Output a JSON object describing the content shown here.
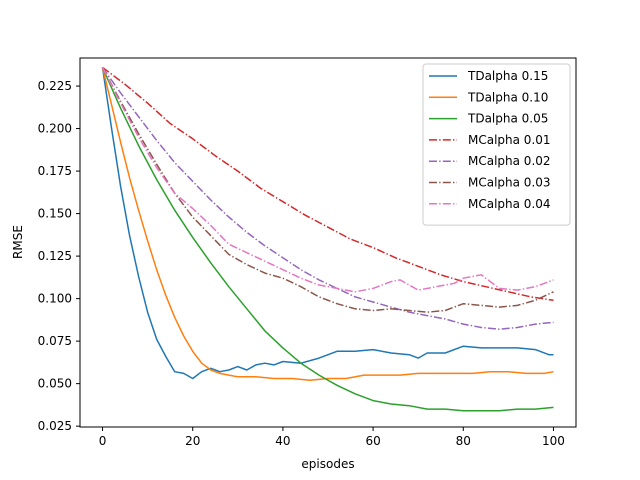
{
  "chart_data": {
    "type": "line",
    "title": "",
    "xlabel": "episodes",
    "ylabel": "RMSE",
    "xlim": [
      -5,
      105
    ],
    "ylim": [
      0.0245,
      0.2415
    ],
    "xticks": [
      0,
      20,
      40,
      60,
      80,
      100
    ],
    "yticks": [
      0.025,
      0.05,
      0.075,
      0.1,
      0.125,
      0.15,
      0.175,
      0.2,
      0.225
    ],
    "ytick_labels": [
      "0.025",
      "0.050",
      "0.075",
      "0.100",
      "0.125",
      "0.150",
      "0.175",
      "0.200",
      "0.225"
    ],
    "grid": false,
    "legend_position": "top-right",
    "series": [
      {
        "name": "TDalpha 0.15",
        "color": "#1f77b4",
        "dash": "solid",
        "x": [
          0,
          2,
          4,
          6,
          8,
          10,
          12,
          14,
          16,
          18,
          20,
          22,
          24,
          26,
          28,
          30,
          32,
          34,
          36,
          38,
          40,
          44,
          48,
          52,
          56,
          60,
          64,
          68,
          70,
          72,
          76,
          80,
          84,
          88,
          92,
          96,
          99,
          100
        ],
        "y": [
          0.236,
          0.2,
          0.166,
          0.137,
          0.113,
          0.092,
          0.076,
          0.066,
          0.057,
          0.056,
          0.053,
          0.057,
          0.059,
          0.057,
          0.058,
          0.06,
          0.058,
          0.061,
          0.062,
          0.061,
          0.063,
          0.062,
          0.065,
          0.069,
          0.069,
          0.07,
          0.068,
          0.067,
          0.065,
          0.068,
          0.068,
          0.072,
          0.071,
          0.071,
          0.071,
          0.07,
          0.067,
          0.067
        ]
      },
      {
        "name": "TDalpha 0.10",
        "color": "#ff7f0e",
        "dash": "solid",
        "x": [
          0,
          2,
          4,
          6,
          8,
          10,
          12,
          14,
          16,
          18,
          20,
          22,
          24,
          26,
          28,
          30,
          34,
          38,
          42,
          46,
          50,
          54,
          58,
          62,
          66,
          70,
          74,
          78,
          82,
          86,
          90,
          94,
          98,
          100
        ],
        "y": [
          0.236,
          0.214,
          0.192,
          0.171,
          0.152,
          0.134,
          0.117,
          0.102,
          0.089,
          0.078,
          0.069,
          0.062,
          0.058,
          0.056,
          0.055,
          0.054,
          0.054,
          0.053,
          0.053,
          0.052,
          0.053,
          0.053,
          0.055,
          0.055,
          0.055,
          0.056,
          0.056,
          0.056,
          0.056,
          0.057,
          0.057,
          0.056,
          0.056,
          0.057
        ]
      },
      {
        "name": "TDalpha 0.05",
        "color": "#2ca02c",
        "dash": "solid",
        "x": [
          0,
          4,
          8,
          12,
          16,
          20,
          24,
          28,
          32,
          36,
          40,
          44,
          48,
          52,
          56,
          60,
          64,
          68,
          72,
          76,
          80,
          84,
          88,
          92,
          96,
          100
        ],
        "y": [
          0.236,
          0.212,
          0.19,
          0.17,
          0.152,
          0.136,
          0.121,
          0.107,
          0.094,
          0.081,
          0.071,
          0.062,
          0.055,
          0.049,
          0.044,
          0.04,
          0.038,
          0.037,
          0.035,
          0.035,
          0.034,
          0.034,
          0.034,
          0.035,
          0.035,
          0.036
        ]
      },
      {
        "name": "MCalpha 0.01",
        "color": "#d62728",
        "dash": "dashdot",
        "x": [
          0,
          5,
          10,
          15,
          20,
          25,
          30,
          35,
          40,
          45,
          50,
          55,
          60,
          65,
          70,
          75,
          80,
          85,
          90,
          95,
          100
        ],
        "y": [
          0.236,
          0.226,
          0.215,
          0.203,
          0.194,
          0.184,
          0.175,
          0.165,
          0.157,
          0.149,
          0.142,
          0.135,
          0.13,
          0.124,
          0.119,
          0.114,
          0.11,
          0.107,
          0.104,
          0.101,
          0.099
        ]
      },
      {
        "name": "MCalpha 0.02",
        "color": "#9467bd",
        "dash": "dashdot",
        "x": [
          0,
          4,
          8,
          12,
          16,
          20,
          24,
          28,
          32,
          36,
          40,
          44,
          48,
          52,
          56,
          60,
          64,
          68,
          72,
          76,
          80,
          84,
          88,
          92,
          96,
          100
        ],
        "y": [
          0.236,
          0.221,
          0.207,
          0.193,
          0.18,
          0.169,
          0.158,
          0.148,
          0.139,
          0.131,
          0.124,
          0.117,
          0.111,
          0.106,
          0.101,
          0.098,
          0.095,
          0.092,
          0.09,
          0.088,
          0.085,
          0.083,
          0.082,
          0.083,
          0.085,
          0.086
        ]
      },
      {
        "name": "MCalpha 0.03",
        "color": "#8c564b",
        "dash": "dashdot",
        "x": [
          0,
          4,
          8,
          12,
          16,
          20,
          24,
          28,
          32,
          36,
          40,
          44,
          48,
          52,
          56,
          60,
          64,
          68,
          72,
          76,
          80,
          84,
          88,
          92,
          96,
          100
        ],
        "y": [
          0.236,
          0.216,
          0.197,
          0.179,
          0.162,
          0.148,
          0.137,
          0.126,
          0.12,
          0.115,
          0.112,
          0.107,
          0.101,
          0.097,
          0.094,
          0.093,
          0.094,
          0.093,
          0.092,
          0.093,
          0.097,
          0.096,
          0.095,
          0.096,
          0.099,
          0.104
        ]
      },
      {
        "name": "MCalpha 0.04",
        "color": "#e377c2",
        "dash": "dashdot",
        "x": [
          0,
          4,
          8,
          12,
          16,
          20,
          24,
          28,
          32,
          36,
          40,
          44,
          48,
          52,
          56,
          60,
          64,
          66,
          70,
          74,
          78,
          80,
          84,
          88,
          92,
          96,
          100
        ],
        "y": [
          0.236,
          0.215,
          0.195,
          0.177,
          0.162,
          0.153,
          0.143,
          0.132,
          0.127,
          0.122,
          0.117,
          0.112,
          0.108,
          0.106,
          0.104,
          0.106,
          0.11,
          0.111,
          0.105,
          0.107,
          0.109,
          0.112,
          0.114,
          0.106,
          0.105,
          0.107,
          0.111
        ]
      }
    ]
  }
}
